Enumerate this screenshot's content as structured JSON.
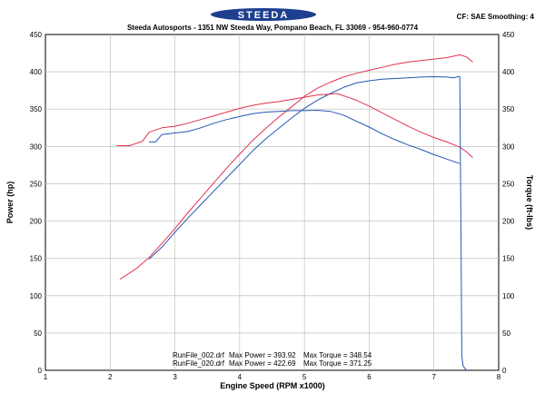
{
  "header": {
    "logo_text": "STEEDA",
    "subtitle": "Steeda Autosports - 1351 NW Steeda Way, Pompano Beach, FL 33069 - 954-960-0774",
    "cf_info": "CF: SAE  Smoothing: 4"
  },
  "colors": {
    "run_002": "#2457b3",
    "run_020": "#e0334f",
    "logo": "#1d3f8f",
    "grid": "#b8b8b8"
  },
  "legend": {
    "rows": [
      {
        "file": "RunFile_002.drf",
        "power_label": "Max Power = 393.92",
        "torque_label": "Max Torque = 348.54"
      },
      {
        "file": "RunFile_020.drf",
        "power_label": "Max Power = 422.69",
        "torque_label": "Max Torque = 371.25"
      }
    ]
  },
  "chart_data": {
    "type": "line",
    "title": "",
    "xlabel": "Engine Speed (RPM x1000)",
    "ylabel_left": "Power (hp)",
    "ylabel_right": "Torque (ft-lbs)",
    "xlim": [
      1,
      8
    ],
    "ylim": [
      0,
      450
    ],
    "x_ticks": [
      "1",
      "2",
      "3",
      "4",
      "5",
      "6",
      "7",
      "8"
    ],
    "y_ticks": [
      "0",
      "50",
      "100",
      "150",
      "200",
      "250",
      "300",
      "350",
      "400",
      "450"
    ],
    "grid": true,
    "series": [
      {
        "color": "#2457b3",
        "points": [
          [
            2.6,
            149
          ],
          [
            2.8,
            165
          ],
          [
            3.0,
            185
          ],
          [
            3.2,
            204
          ],
          [
            3.4,
            222
          ],
          [
            3.6,
            240
          ],
          [
            3.8,
            258
          ],
          [
            4.0,
            276
          ],
          [
            4.2,
            294
          ],
          [
            4.4,
            310
          ],
          [
            4.6,
            324
          ],
          [
            4.8,
            338
          ],
          [
            5.0,
            351
          ],
          [
            5.2,
            362
          ],
          [
            5.4,
            371
          ],
          [
            5.6,
            379
          ],
          [
            5.8,
            385
          ],
          [
            6.0,
            388
          ],
          [
            6.2,
            390
          ],
          [
            6.4,
            391
          ],
          [
            6.6,
            392
          ],
          [
            6.8,
            393
          ],
          [
            7.0,
            393.5
          ],
          [
            7.2,
            393
          ],
          [
            7.3,
            392
          ],
          [
            7.4,
            393.9
          ]
        ]
      },
      {
        "color": "#e0334f",
        "points": [
          [
            2.15,
            122
          ],
          [
            2.4,
            136
          ],
          [
            2.6,
            151
          ],
          [
            2.8,
            170
          ],
          [
            3.0,
            190
          ],
          [
            3.2,
            211
          ],
          [
            3.4,
            231
          ],
          [
            3.6,
            251
          ],
          [
            3.8,
            271
          ],
          [
            4.0,
            290
          ],
          [
            4.2,
            308
          ],
          [
            4.4,
            324
          ],
          [
            4.6,
            339
          ],
          [
            4.8,
            353
          ],
          [
            5.0,
            367
          ],
          [
            5.2,
            378
          ],
          [
            5.4,
            386
          ],
          [
            5.6,
            393
          ],
          [
            5.8,
            398
          ],
          [
            6.0,
            402
          ],
          [
            6.2,
            406
          ],
          [
            6.4,
            410
          ],
          [
            6.6,
            413
          ],
          [
            6.8,
            415
          ],
          [
            7.0,
            417
          ],
          [
            7.2,
            419
          ],
          [
            7.4,
            422.7
          ],
          [
            7.5,
            420
          ],
          [
            7.6,
            413
          ]
        ]
      },
      {
        "color": "#2457b3",
        "points": [
          [
            2.6,
            306
          ],
          [
            2.7,
            306
          ],
          [
            2.8,
            316
          ],
          [
            3.0,
            318
          ],
          [
            3.2,
            320
          ],
          [
            3.4,
            325
          ],
          [
            3.6,
            331
          ],
          [
            3.8,
            336
          ],
          [
            4.0,
            340
          ],
          [
            4.2,
            344
          ],
          [
            4.4,
            346
          ],
          [
            4.6,
            347
          ],
          [
            4.8,
            348
          ],
          [
            5.0,
            348
          ],
          [
            5.2,
            348.5
          ],
          [
            5.4,
            347
          ],
          [
            5.6,
            342
          ],
          [
            5.8,
            334
          ],
          [
            6.0,
            326
          ],
          [
            6.2,
            317
          ],
          [
            6.4,
            309
          ],
          [
            6.6,
            302
          ],
          [
            6.8,
            296
          ],
          [
            7.0,
            289
          ],
          [
            7.2,
            283
          ],
          [
            7.3,
            280
          ],
          [
            7.4,
            277
          ]
        ]
      },
      {
        "color": "#e0334f",
        "points": [
          [
            2.1,
            301
          ],
          [
            2.3,
            301
          ],
          [
            2.5,
            307
          ],
          [
            2.6,
            319
          ],
          [
            2.8,
            325
          ],
          [
            3.0,
            327
          ],
          [
            3.2,
            331
          ],
          [
            3.4,
            336
          ],
          [
            3.6,
            341
          ],
          [
            3.8,
            346
          ],
          [
            4.0,
            351
          ],
          [
            4.2,
            355
          ],
          [
            4.4,
            358
          ],
          [
            4.6,
            360
          ],
          [
            4.8,
            363
          ],
          [
            5.0,
            366
          ],
          [
            5.2,
            369
          ],
          [
            5.4,
            370
          ],
          [
            5.5,
            371
          ],
          [
            5.6,
            368
          ],
          [
            5.8,
            362
          ],
          [
            6.0,
            354
          ],
          [
            6.2,
            345
          ],
          [
            6.4,
            336
          ],
          [
            6.6,
            327
          ],
          [
            6.8,
            319
          ],
          [
            7.0,
            312
          ],
          [
            7.2,
            306
          ],
          [
            7.4,
            299
          ],
          [
            7.5,
            293
          ],
          [
            7.6,
            285
          ]
        ]
      },
      {
        "color": "#2457b3",
        "points": [
          [
            7.4,
            393.9
          ],
          [
            7.42,
            150
          ],
          [
            7.43,
            20
          ],
          [
            7.45,
            6
          ],
          [
            7.5,
            0
          ]
        ]
      }
    ]
  }
}
